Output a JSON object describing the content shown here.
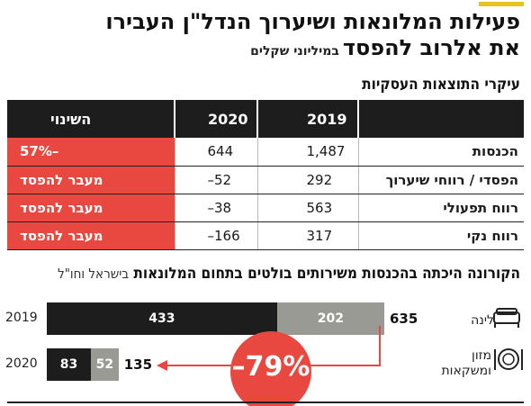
{
  "header": {
    "title_line1": "פעילות המלונאות ושיערוך הנדל\"ן העבירו",
    "title_line2": "את אלרוב להפסד",
    "subtitle": "במיליוני שקלים",
    "accent_color": "#e6c31e"
  },
  "table_section": {
    "heading": "עיקרי התוצאות העסקיות"
  },
  "bars_section": {
    "heading": "הקורונה היכתה בהכנסות משירותים בולטים בתחום המלונאות",
    "heading_note": "בישראל וחו\"ל",
    "category_lodging": "לינה",
    "category_food_line1": "מזון",
    "category_food_line2": "ומשקאות",
    "change_label": "–79%",
    "highlight_color": "#e8483f"
  },
  "chart_data": [
    {
      "type": "table",
      "columns": [
        "",
        "2019",
        "2020",
        "השינוי"
      ],
      "rows": [
        {
          "label": "הכנסות",
          "v2019": "1,487",
          "v2020": "644",
          "change": "–57%",
          "highlight": true
        },
        {
          "label": "הפסדי / רווחי שיערוך",
          "v2019": "292",
          "v2020": "–52",
          "change": "מעבר להפסד",
          "highlight": true
        },
        {
          "label": "רווח תפעולי",
          "v2019": "563",
          "v2020": "–38",
          "change": "מעבר להפסד",
          "highlight": true
        },
        {
          "label": "רווח נקי",
          "v2019": "317",
          "v2020": "–166",
          "change": "מעבר להפסד",
          "highlight": true
        }
      ]
    },
    {
      "type": "bar",
      "orientation": "horizontal",
      "stacked": true,
      "categories": [
        "2019",
        "2020"
      ],
      "series": [
        {
          "name": "מזון ומשקאות",
          "values": [
            433,
            83
          ],
          "color": "#1d1d1d"
        },
        {
          "name": "לינה",
          "values": [
            202,
            52
          ],
          "color": "#9a9a95"
        }
      ],
      "totals": [
        635,
        135
      ],
      "change": "–79%"
    }
  ]
}
